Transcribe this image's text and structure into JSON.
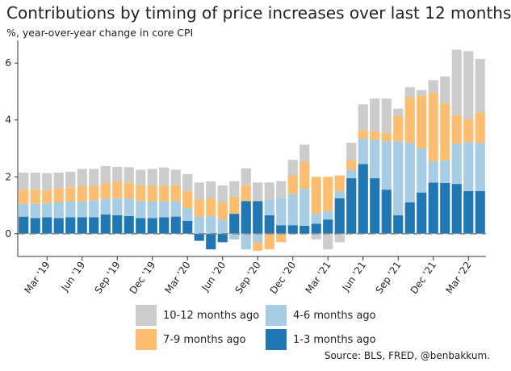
{
  "title": "Contributions by timing of price increases over last 12 months",
  "subtitle": "%, year-over-year change in core CPI",
  "source": "Source: BLS, FRED, @benbakkum.",
  "colors": {
    "m10_12": "#cccccc",
    "m7_9": "#fdbe72",
    "m4_6": "#a6cde3",
    "m1_3": "#2077b4",
    "zero_line": "#888888",
    "axis": "#333333"
  },
  "chart_data": {
    "type": "bar",
    "stacked": true,
    "ylim": [
      -0.8,
      6.8
    ],
    "yticks": [
      0,
      2,
      4,
      6
    ],
    "xtick_labels": [
      "Mar '19",
      "Jun '19",
      "Sep '19",
      "Dec '19",
      "Mar '20",
      "Jun '20",
      "Sep '20",
      "Dec '20",
      "Mar '21",
      "Jun '21",
      "Sep '21",
      "Dec '21",
      "Mar '22"
    ],
    "xtick_index": [
      2,
      5,
      8,
      11,
      14,
      17,
      20,
      23,
      26,
      29,
      32,
      35,
      38
    ],
    "series": [
      {
        "name": "1-3 months ago",
        "color_key": "m1_3",
        "values": [
          0.6,
          0.55,
          0.58,
          0.55,
          0.58,
          0.58,
          0.58,
          0.68,
          0.65,
          0.62,
          0.55,
          0.55,
          0.58,
          0.6,
          0.45,
          -0.25,
          -0.55,
          -0.3,
          0.7,
          1.15,
          1.15,
          0.65,
          0.3,
          0.3,
          0.28,
          0.35,
          0.5,
          1.25,
          1.95,
          2.45,
          1.95,
          1.55,
          0.65,
          1.1,
          1.45,
          1.8,
          1.78,
          1.75,
          1.5,
          1.5
        ]
      },
      {
        "name": "4-6 months ago",
        "color_key": "m4_6",
        "values": [
          0.45,
          0.5,
          0.5,
          0.55,
          0.55,
          0.55,
          0.6,
          0.55,
          0.6,
          0.62,
          0.6,
          0.58,
          0.55,
          0.55,
          0.45,
          0.6,
          0.62,
          0.5,
          -0.2,
          -0.55,
          -0.3,
          0.55,
          0.95,
          1.1,
          1.3,
          0.35,
          0.3,
          0.25,
          0.3,
          0.9,
          1.35,
          1.7,
          2.6,
          2.1,
          1.55,
          0.75,
          0.8,
          1.42,
          1.72,
          1.7
        ]
      },
      {
        "name": "7-9 months ago",
        "color_key": "m7_9",
        "values": [
          0.5,
          0.5,
          0.45,
          0.5,
          0.5,
          0.55,
          0.5,
          0.55,
          0.6,
          0.55,
          0.55,
          0.55,
          0.55,
          0.55,
          0.6,
          0.6,
          0.62,
          0.6,
          0.6,
          0.55,
          -0.3,
          -0.55,
          -0.3,
          0.65,
          0.95,
          1.3,
          1.2,
          0.55,
          0.35,
          0.3,
          0.3,
          0.3,
          0.9,
          1.6,
          1.85,
          2.4,
          2.0,
          1.0,
          0.8,
          1.05
        ]
      },
      {
        "name": "10-12 months ago",
        "color_key": "m10_12",
        "values": [
          0.6,
          0.6,
          0.6,
          0.55,
          0.55,
          0.6,
          0.6,
          0.6,
          0.5,
          0.55,
          0.55,
          0.6,
          0.65,
          0.55,
          0.6,
          0.6,
          0.6,
          0.6,
          0.55,
          0.6,
          0.65,
          0.6,
          0.6,
          0.55,
          0.6,
          -0.2,
          -0.55,
          -0.3,
          0.6,
          0.9,
          1.15,
          1.2,
          0.25,
          0.35,
          0.2,
          0.45,
          0.95,
          2.3,
          2.4,
          1.9
        ]
      }
    ]
  },
  "legend": [
    {
      "label": "10-12 months ago",
      "color_key": "m10_12"
    },
    {
      "label": "4-6 months ago",
      "color_key": "m4_6"
    },
    {
      "label": "7-9 months ago",
      "color_key": "m7_9"
    },
    {
      "label": "1-3 months ago",
      "color_key": "m1_3"
    }
  ]
}
